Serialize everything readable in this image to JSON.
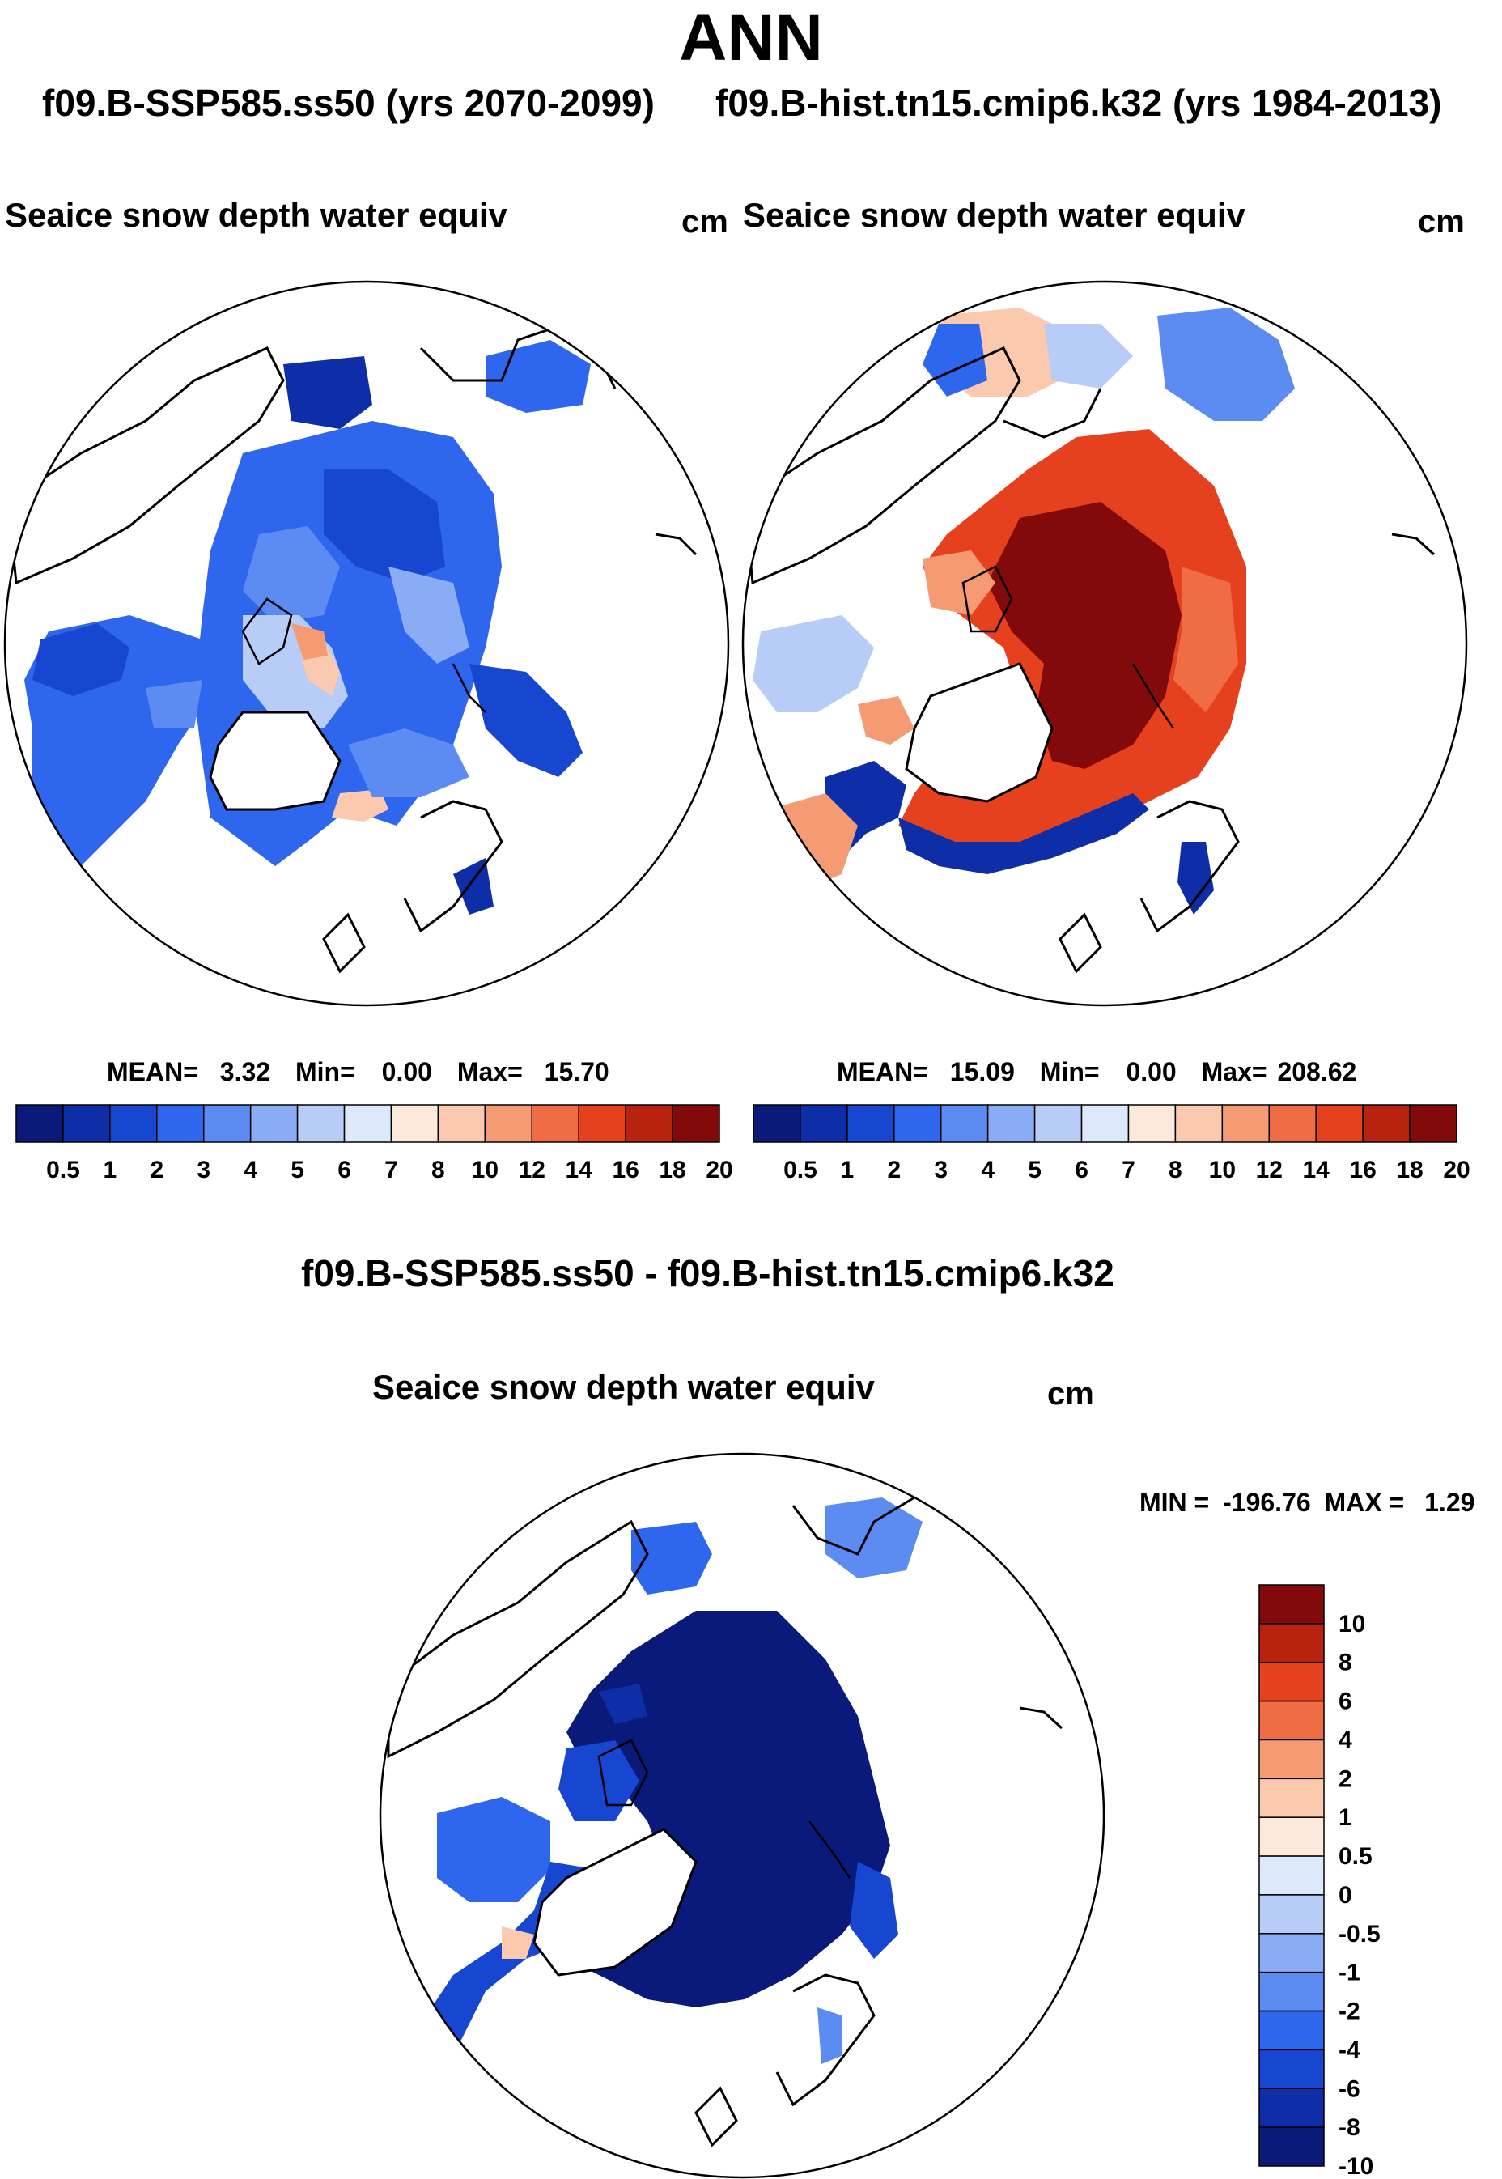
{
  "figure": {
    "title": "ANN",
    "subtitle_left": "f09.B-SSP585.ss50 (yrs 2070-2099)",
    "subtitle_right": "f09.B-hist.tn15.cmip6.k32 (yrs 1984-2013)",
    "diff_title": "f09.B-SSP585.ss50 - f09.B-hist.tn15.cmip6.k32"
  },
  "panels": [
    {
      "title": "Seaice snow depth water equiv",
      "units": "cm",
      "stats": {
        "mean_label": "MEAN=",
        "mean": "3.32",
        "min_label": "Min=",
        "min": "0.00",
        "max_label": "Max=",
        "max": "15.70"
      }
    },
    {
      "title": "Seaice snow depth water equiv",
      "units": "cm",
      "stats": {
        "mean_label": "MEAN=",
        "mean": "15.09",
        "min_label": "Min=",
        "min": "0.00",
        "max_label": "Max=",
        "max": "208.62"
      }
    },
    {
      "title": "Seaice snow depth water equiv",
      "units": "cm",
      "stats": {
        "min_label": "MIN =",
        "min": "-196.76",
        "max_label": "MAX =",
        "max": "1.29"
      }
    }
  ],
  "colorbars": {
    "abs": {
      "colors": [
        "#0a1a7a",
        "#0d2ea6",
        "#1747d1",
        "#2e66ee",
        "#5c8bf2",
        "#8aacf4",
        "#b7cdf7",
        "#dbe9fb",
        "#fde9dc",
        "#fac9ae",
        "#f49b73",
        "#ef6c44",
        "#e6411f",
        "#b7230f",
        "#820a0a"
      ],
      "labels": [
        "0.5",
        "1",
        "2",
        "3",
        "4",
        "5",
        "6",
        "7",
        "8",
        "10",
        "12",
        "14",
        "16",
        "18",
        "20"
      ]
    },
    "diff": {
      "colors": [
        "#0a1a7a",
        "#0d2ea6",
        "#1747d1",
        "#2e66ee",
        "#5c8bf2",
        "#8aacf4",
        "#b7cdf7",
        "#dbe9fb",
        "#fde9dc",
        "#fac9ae",
        "#f49b73",
        "#ef6c44",
        "#e6411f",
        "#b7230f",
        "#820a0a"
      ],
      "labels": [
        "-10",
        "-8",
        "-6",
        "-4",
        "-2",
        "-1",
        "-0.5",
        "0",
        "0.5",
        "1",
        "2",
        "4",
        "6",
        "8",
        "10"
      ]
    }
  }
}
